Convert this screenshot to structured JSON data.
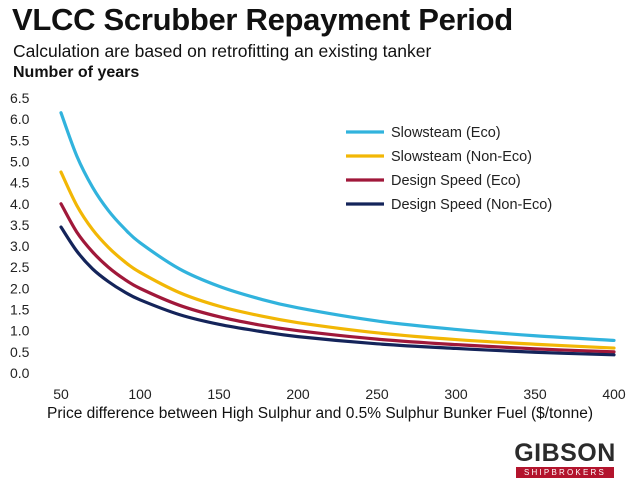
{
  "title": "VLCC Scrubber Repayment Period",
  "subtitle": "Calculation are based on retrofitting an existing tanker",
  "logo": {
    "word": "GIBSON",
    "sub": "SHIPBROKERS"
  },
  "colors": {
    "slowsteam_eco": "#31b3dd",
    "slowsteam_non_eco": "#f2b705",
    "design_eco": "#a0183a",
    "design_non_eco": "#14245a"
  },
  "chart_data": {
    "type": "line",
    "ylabel": "Number of years",
    "xlabel": "Price difference between High Sulphur and 0.5% Sulphur Bunker Fuel ($/tonne)",
    "xlim": [
      50,
      400
    ],
    "ylim": [
      0,
      6.5
    ],
    "x_ticks": [
      "50",
      "100",
      "150",
      "200",
      "250",
      "300",
      "350",
      "400"
    ],
    "y_ticks": [
      "0.0",
      "0.5",
      "1.0",
      "1.5",
      "2.0",
      "2.5",
      "3.0",
      "3.5",
      "4.0",
      "4.5",
      "5.0",
      "5.5",
      "6.0",
      "6.5"
    ],
    "grid": false,
    "legend_position": "top-right",
    "x": [
      50,
      60,
      70,
      80,
      90,
      100,
      125,
      150,
      175,
      200,
      250,
      300,
      350,
      400
    ],
    "series": [
      {
        "name": "Slowsteam (Eco)",
        "color": "#31b3dd",
        "values": [
          6.15,
          5.13,
          4.39,
          3.84,
          3.42,
          3.08,
          2.46,
          2.05,
          1.76,
          1.54,
          1.23,
          1.03,
          0.88,
          0.77
        ]
      },
      {
        "name": "Slowsteam (Non-Eco)",
        "color": "#f2b705",
        "values": [
          4.75,
          3.96,
          3.39,
          2.97,
          2.64,
          2.38,
          1.9,
          1.58,
          1.36,
          1.19,
          0.95,
          0.79,
          0.68,
          0.59
        ]
      },
      {
        "name": "Design Speed (Eco)",
        "color": "#a0183a",
        "values": [
          4.0,
          3.33,
          2.86,
          2.5,
          2.22,
          2.0,
          1.6,
          1.33,
          1.14,
          1.0,
          0.8,
          0.67,
          0.57,
          0.5
        ]
      },
      {
        "name": "Design Speed (Non-Eco)",
        "color": "#14245a",
        "values": [
          3.45,
          2.88,
          2.46,
          2.16,
          1.92,
          1.73,
          1.38,
          1.15,
          0.99,
          0.86,
          0.69,
          0.58,
          0.49,
          0.43
        ]
      }
    ]
  }
}
